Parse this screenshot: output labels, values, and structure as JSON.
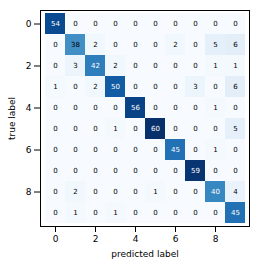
{
  "chart_data": {
    "type": "heatmap",
    "xlabel": "predicted label",
    "ylabel": "true label",
    "x": [
      0,
      1,
      2,
      3,
      4,
      5,
      6,
      7,
      8,
      9
    ],
    "y": [
      0,
      1,
      2,
      3,
      4,
      5,
      6,
      7,
      8,
      9
    ],
    "values": [
      [
        54,
        0,
        0,
        0,
        0,
        0,
        0,
        0,
        0,
        0
      ],
      [
        0,
        38,
        2,
        0,
        0,
        0,
        2,
        0,
        5,
        6
      ],
      [
        0,
        3,
        42,
        2,
        0,
        0,
        0,
        0,
        1,
        1
      ],
      [
        1,
        0,
        2,
        50,
        0,
        0,
        0,
        3,
        0,
        6
      ],
      [
        0,
        0,
        0,
        0,
        56,
        0,
        0,
        0,
        1,
        0
      ],
      [
        0,
        0,
        0,
        1,
        0,
        60,
        0,
        0,
        0,
        5
      ],
      [
        0,
        0,
        0,
        0,
        0,
        0,
        45,
        0,
        1,
        0
      ],
      [
        0,
        0,
        0,
        0,
        0,
        0,
        0,
        59,
        0,
        0
      ],
      [
        0,
        2,
        0,
        0,
        0,
        1,
        0,
        0,
        40,
        4
      ],
      [
        0,
        1,
        0,
        1,
        0,
        0,
        0,
        0,
        0,
        45
      ]
    ],
    "xticks": [
      0,
      2,
      4,
      6,
      8
    ],
    "yticks": [
      0,
      2,
      4,
      6,
      8
    ],
    "color": "Blues",
    "data_labels": true
  }
}
